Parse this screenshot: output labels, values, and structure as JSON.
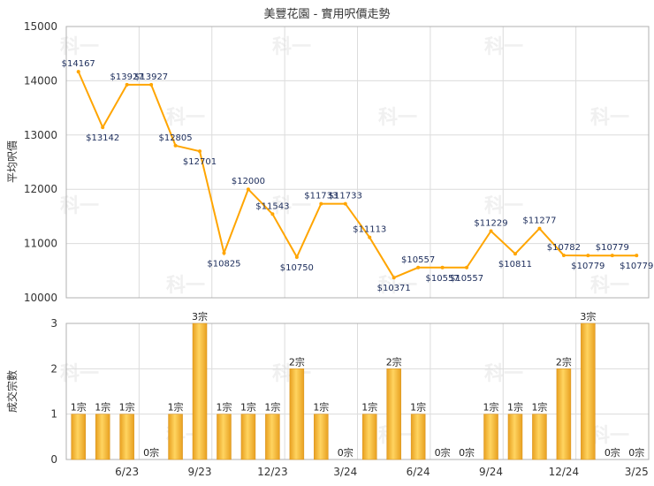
{
  "chart_data": [
    {
      "type": "line",
      "title": "美豐花園 - 實用呎價走勢",
      "ylabel": "平均呎價",
      "ylim": [
        10000,
        15000
      ],
      "yticks": [
        "10000",
        "11000",
        "12000",
        "13000",
        "14000",
        "15000"
      ],
      "color": "#FFA500",
      "grid": true,
      "points": [
        {
          "value": 14167,
          "label": "$14167"
        },
        {
          "value": 13142,
          "label": "$13142"
        },
        {
          "value": 13927,
          "label": "$13927"
        },
        {
          "value": 13927,
          "label": "$13927"
        },
        {
          "value": 12805,
          "label": "$12805"
        },
        {
          "value": 12701,
          "label": "$12701"
        },
        {
          "value": 10825,
          "label": "$10825"
        },
        {
          "value": 12000,
          "label": "$12000"
        },
        {
          "value": 11543,
          "label": "$11543"
        },
        {
          "value": 10750,
          "label": "$10750"
        },
        {
          "value": 11733,
          "label": "$11733"
        },
        {
          "value": 11733,
          "label": "$11733"
        },
        {
          "value": 11113,
          "label": "$11113"
        },
        {
          "value": 10371,
          "label": "$10371"
        },
        {
          "value": 10557,
          "label": "$10557"
        },
        {
          "value": 10557,
          "label": "$10557"
        },
        {
          "value": 10557,
          "label": "$10557"
        },
        {
          "value": 11229,
          "label": "$11229"
        },
        {
          "value": 10811,
          "label": "$10811"
        },
        {
          "value": 11277,
          "label": "$11277"
        },
        {
          "value": 10782,
          "label": "$10782"
        },
        {
          "value": 10779,
          "label": "$10779"
        },
        {
          "value": 10779,
          "label": "$10779"
        },
        {
          "value": 10779,
          "label": "$10779"
        }
      ]
    },
    {
      "type": "bar",
      "ylabel": "成交宗數",
      "ylim": [
        0,
        3
      ],
      "yticks": [
        "0",
        "1",
        "2",
        "3"
      ],
      "color": "#F0B030",
      "grid": true,
      "values": [
        1,
        1,
        1,
        0,
        1,
        3,
        1,
        1,
        1,
        2,
        1,
        0,
        1,
        2,
        1,
        0,
        0,
        1,
        1,
        1,
        2,
        3,
        0,
        0
      ],
      "labels": [
        "1宗",
        "1宗",
        "1宗",
        "0宗",
        "1宗",
        "3宗",
        "1宗",
        "1宗",
        "1宗",
        "2宗",
        "1宗",
        "0宗",
        "1宗",
        "2宗",
        "1宗",
        "0宗",
        "0宗",
        "1宗",
        "1宗",
        "1宗",
        "2宗",
        "3宗",
        "0宗",
        "0宗"
      ],
      "x_ticks": [
        {
          "index": 2,
          "label": "6/23"
        },
        {
          "index": 5,
          "label": "9/23"
        },
        {
          "index": 8,
          "label": "12/23"
        },
        {
          "index": 11,
          "label": "3/24"
        },
        {
          "index": 14,
          "label": "6/24"
        },
        {
          "index": 17,
          "label": "9/24"
        },
        {
          "index": 20,
          "label": "12/24"
        },
        {
          "index": 23,
          "label": "3/25"
        }
      ]
    }
  ],
  "watermark": "科一"
}
